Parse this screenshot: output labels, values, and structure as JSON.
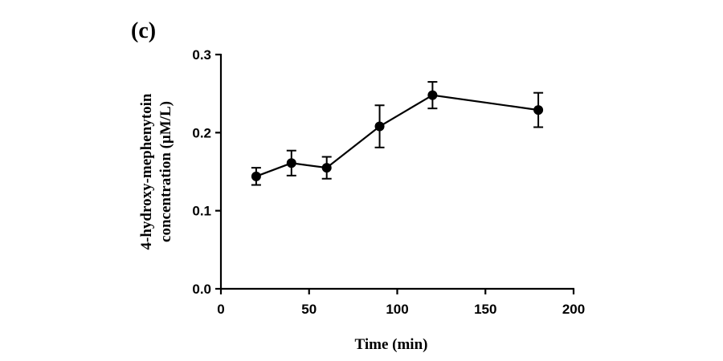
{
  "chart_data": {
    "type": "line",
    "panel_label": "(c)",
    "title": "",
    "xlabel": "Time (min)",
    "ylabel_lines": [
      "4-hydroxy-mephenytoin",
      "concentration (μM/L)"
    ],
    "xlim": [
      0,
      200
    ],
    "ylim": [
      0.0,
      0.3
    ],
    "x_ticks": [
      0,
      50,
      100,
      150,
      200
    ],
    "x_tick_labels": [
      "0",
      "50",
      "100",
      "150",
      "200"
    ],
    "y_ticks": [
      0.0,
      0.1,
      0.2,
      0.3
    ],
    "y_tick_labels": [
      "0.0",
      "0.1",
      "0.2",
      "0.3"
    ],
    "grid": false,
    "series": [
      {
        "x": [
          20,
          40,
          60,
          90,
          120,
          180
        ],
        "y": [
          0.144,
          0.161,
          0.155,
          0.208,
          0.248,
          0.229
        ],
        "error": [
          0.011,
          0.016,
          0.014,
          0.027,
          0.017,
          0.022
        ],
        "color": "#000000",
        "marker": "circle"
      }
    ]
  }
}
